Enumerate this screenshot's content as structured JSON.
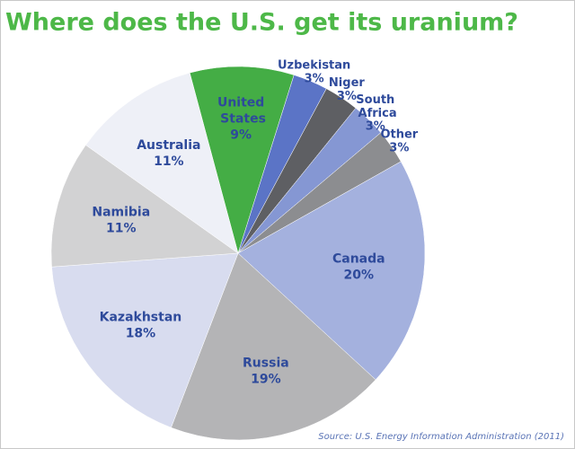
{
  "chart_data": {
    "type": "pie",
    "title": "Where does the U.S. get its uranium?",
    "source": "Source: U.S. Energy Information Administration (2011)",
    "categories": [
      "United States",
      "Uzbekistan",
      "Niger",
      "South Africa",
      "Other",
      "Canada",
      "Russia",
      "Kazakhstan",
      "Namibia",
      "Australia"
    ],
    "values": [
      9,
      3,
      3,
      3,
      3,
      20,
      19,
      18,
      11,
      11
    ],
    "value_labels": [
      "9%",
      "3%",
      "3%",
      "3%",
      "3%",
      "20%",
      "19%",
      "18%",
      "11%",
      "11%"
    ],
    "colors": [
      "#44ad45",
      "#5b74c6",
      "#5e5f63",
      "#8597d3",
      "#8c8d90",
      "#a4b1de",
      "#b4b4b6",
      "#d8dcef",
      "#d2d2d3",
      "#eef0f7"
    ]
  }
}
